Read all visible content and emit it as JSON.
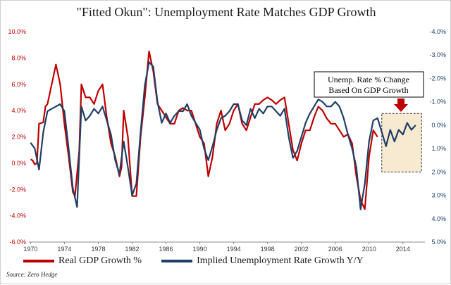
{
  "title": "\"Fitted Okun\": Unemployment Rate Matches GDP Growth",
  "source": "Source: Zero Hedge",
  "legend": {
    "gdp": "Real GDP Growth %",
    "unemp": "Implied Unemployment Rate Growth Y/Y"
  },
  "annotation": {
    "line1": "Unemp. Rate % Change",
    "line2": "Based On GDP Growth"
  },
  "colors": {
    "gdp": "#c00000",
    "unemp": "#1f3f66",
    "annotation_fill": "#f7ead0",
    "arrow": "#c00000"
  },
  "chart_data": {
    "type": "line",
    "title": "\"Fitted Okun\": Unemployment Rate Matches GDP Growth",
    "x_ticks": [
      "1970",
      "1974",
      "1978",
      "1982",
      "1986",
      "1990",
      "1994",
      "1998",
      "2002",
      "2006",
      "2010",
      "2014"
    ],
    "y_left_ticks": [
      "10.0%",
      "8.0%",
      "6.0%",
      "4.0%",
      "2.0%",
      "0.0%",
      "-2.0%",
      "-4.0%",
      "-6.0%"
    ],
    "y_right_ticks": [
      "-4.0%",
      "-3.0%",
      "-2.0%",
      "-1.0%",
      "0.0%",
      "1.0%",
      "2.0%",
      "3.0%",
      "4.0%",
      "5.0%"
    ],
    "ylim_left": [
      -6,
      10
    ],
    "ylim_right_inverted": [
      -4,
      5
    ],
    "xlim": [
      1969.8,
      2016.6
    ],
    "grid": false,
    "legend_position": "bottom",
    "series": [
      {
        "name": "Real GDP Growth %",
        "axis": "left",
        "x": [
          1970,
          1970.25,
          1970.5,
          1970.75,
          1971,
          1971.5,
          1971.75,
          1972,
          1972.5,
          1973,
          1973.5,
          1974,
          1974.5,
          1975,
          1975.25,
          1975.75,
          1976,
          1976.5,
          1977,
          1977.5,
          1978,
          1978.5,
          1979,
          1979.5,
          1980,
          1980.5,
          1980.75,
          1981,
          1981.5,
          1982,
          1982.5,
          1983,
          1983.5,
          1984,
          1984.5,
          1985,
          1985.5,
          1986,
          1986.5,
          1987,
          1987.5,
          1988,
          1988.5,
          1989,
          1989.5,
          1990,
          1990.5,
          1991,
          1991.5,
          1992,
          1992.5,
          1993,
          1993.5,
          1994,
          1994.5,
          1995,
          1995.5,
          1996,
          1996.5,
          1997,
          1997.5,
          1998,
          1998.5,
          1999,
          1999.5,
          2000,
          2000.5,
          2001,
          2001.5,
          2002,
          2002.5,
          2003,
          2003.5,
          2004,
          2004.5,
          2005,
          2005.5,
          2006,
          2006.5,
          2007,
          2007.5,
          2008,
          2008.5,
          2009,
          2009.5,
          2010,
          2010.5,
          2011
        ],
        "y": [
          0.3,
          0.2,
          -0.1,
          0.0,
          3.0,
          3.1,
          4.3,
          4.5,
          6.0,
          7.5,
          6.0,
          3.0,
          0.5,
          -2.2,
          -2.5,
          1.0,
          6.0,
          5.0,
          5.0,
          4.5,
          5.5,
          6.0,
          3.5,
          1.5,
          0.5,
          -1.0,
          -0.3,
          4.0,
          2.0,
          -2.5,
          -2.5,
          2.0,
          5.0,
          8.5,
          7.0,
          4.5,
          4.0,
          3.5,
          3.0,
          3.0,
          4.0,
          4.2,
          4.0,
          4.0,
          3.0,
          2.0,
          1.5,
          -1.0,
          0.5,
          3.0,
          4.0,
          2.5,
          3.0,
          4.0,
          4.5,
          3.0,
          2.5,
          3.5,
          4.5,
          4.5,
          4.8,
          5.0,
          4.8,
          4.5,
          4.8,
          5.0,
          3.0,
          1.0,
          0.2,
          1.5,
          2.5,
          2.5,
          3.5,
          4.3,
          4.0,
          3.4,
          3.0,
          3.0,
          2.5,
          2.0,
          2.2,
          1.5,
          -1.0,
          -2.8,
          -3.5,
          0.5,
          2.5,
          2.0
        ]
      },
      {
        "name": "Implied Unemployment Rate Growth Y/Y",
        "axis": "right",
        "x": [
          1970,
          1970.5,
          1971,
          1971.5,
          1972,
          1972.5,
          1973,
          1973.5,
          1974,
          1974.5,
          1975,
          1975.5,
          1976,
          1976.5,
          1977,
          1977.5,
          1978,
          1978.5,
          1979,
          1979.5,
          1980,
          1980.5,
          1981,
          1981.5,
          1982,
          1982.5,
          1983,
          1983.5,
          1984,
          1984.5,
          1985,
          1985.5,
          1986,
          1986.5,
          1987,
          1987.5,
          1988,
          1988.5,
          1989,
          1989.5,
          1990,
          1990.5,
          1991,
          1991.5,
          1992,
          1992.5,
          1993,
          1993.5,
          1994,
          1994.5,
          1995,
          1995.5,
          1996,
          1996.5,
          1997,
          1997.5,
          1998,
          1998.5,
          1999,
          1999.5,
          2000,
          2000.5,
          2001,
          2001.5,
          2002,
          2002.5,
          2003,
          2003.5,
          2004,
          2004.5,
          2005,
          2005.5,
          2006,
          2006.5,
          2007,
          2007.5,
          2008,
          2008.5,
          2009,
          2009.5,
          2010,
          2010.5,
          2011,
          2011.5,
          2012,
          2012.5,
          2013,
          2013.5,
          2014,
          2014.5,
          2015,
          2015.5
        ],
        "y": [
          0.75,
          1.0,
          1.9,
          0.3,
          -0.6,
          -0.7,
          -0.8,
          -0.9,
          -0.6,
          1.0,
          2.7,
          3.5,
          -0.8,
          -0.2,
          -0.4,
          -0.7,
          -0.5,
          -0.8,
          -0.2,
          0.4,
          1.5,
          2.1,
          0.7,
          1.8,
          3.0,
          2.5,
          0.3,
          -1.7,
          -2.7,
          -2.5,
          -1.0,
          -0.1,
          -0.5,
          -0.1,
          -0.4,
          -0.6,
          -0.6,
          -0.9,
          -0.4,
          -0.1,
          0.2,
          1.0,
          1.5,
          0.9,
          0.2,
          -0.3,
          -0.4,
          -0.6,
          -0.9,
          -0.9,
          -0.2,
          0.0,
          -0.7,
          -0.3,
          -0.7,
          -0.5,
          -0.8,
          -0.8,
          -0.6,
          -0.4,
          -0.7,
          0.5,
          1.4,
          1.1,
          0.5,
          -0.1,
          -0.5,
          -0.8,
          -1.1,
          -1.0,
          -0.8,
          -0.8,
          -1.0,
          -0.8,
          -0.3,
          0.4,
          1.0,
          1.8,
          3.6,
          2.5,
          0.7,
          -0.2,
          -0.3,
          0.3,
          0.9,
          0.2,
          0.7,
          0.2,
          0.4,
          -0.1,
          0.2,
          0.0
        ]
      }
    ]
  }
}
